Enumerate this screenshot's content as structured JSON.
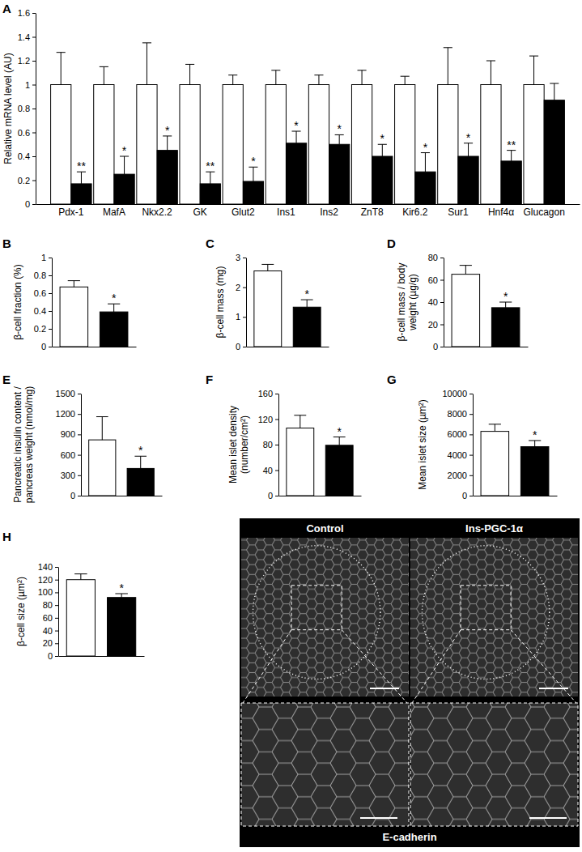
{
  "chart_data": [
    {
      "type": "bar",
      "title": "A",
      "ylabel": "Relative mRNA level (AU)",
      "categories": [
        "Pdx-1",
        "MafA",
        "Nkx2.2",
        "GK",
        "Glut2",
        "Ins1",
        "Ins2",
        "ZnT8",
        "Kir6.2",
        "Sur1",
        "Hnf4α",
        "Glucagon"
      ],
      "ylim": [
        0,
        1.6
      ],
      "yticks": [
        0,
        0.2,
        0.4,
        0.6,
        0.8,
        1,
        1.2,
        1.4,
        1.6
      ],
      "series": [
        {
          "color": "#ffffff",
          "values": [
            1,
            1,
            1,
            1,
            1,
            1,
            1,
            1,
            1,
            1,
            1,
            1
          ],
          "errors": [
            0.27,
            0.15,
            0.35,
            0.17,
            0.08,
            0.12,
            0.08,
            0.12,
            0.07,
            0.31,
            0.2,
            0.24
          ]
        },
        {
          "color": "#000000",
          "values": [
            0.17,
            0.25,
            0.45,
            0.17,
            0.19,
            0.51,
            0.5,
            0.4,
            0.27,
            0.4,
            0.36,
            0.87
          ],
          "errors": [
            0.1,
            0.15,
            0.12,
            0.1,
            0.12,
            0.1,
            0.08,
            0.1,
            0.16,
            0.11,
            0.09,
            0.14
          ],
          "annotations": [
            "**",
            "*",
            "*",
            "**",
            "*",
            "*",
            "*",
            "*",
            "*",
            "*",
            "**",
            null
          ]
        }
      ]
    },
    {
      "type": "bar",
      "title": "B",
      "ylabel": "β-cell fraction (%)",
      "categories": [
        null
      ],
      "ylim": [
        0,
        1
      ],
      "yticks": [
        0,
        0.2,
        0.4,
        0.6,
        0.8,
        1
      ],
      "series": [
        {
          "color": "#ffffff",
          "values": [
            0.67
          ],
          "errors": [
            0.07
          ]
        },
        {
          "color": "#000000",
          "values": [
            0.39
          ],
          "errors": [
            0.09
          ],
          "annotations": [
            "*"
          ]
        }
      ]
    },
    {
      "type": "bar",
      "title": "C",
      "ylabel": "β-cell mass (mg)",
      "categories": [
        null
      ],
      "ylim": [
        0,
        3
      ],
      "yticks": [
        0,
        1,
        2,
        3
      ],
      "series": [
        {
          "color": "#ffffff",
          "values": [
            2.55
          ],
          "errors": [
            0.22
          ]
        },
        {
          "color": "#000000",
          "values": [
            1.33
          ],
          "errors": [
            0.25
          ],
          "annotations": [
            "*"
          ]
        }
      ]
    },
    {
      "type": "bar",
      "title": "D",
      "ylabel": [
        "β-cell mass / body",
        "weight (µg/g)"
      ],
      "categories": [
        null
      ],
      "ylim": [
        0,
        80
      ],
      "yticks": [
        0,
        20,
        40,
        60,
        80
      ],
      "series": [
        {
          "color": "#ffffff",
          "values": [
            65
          ],
          "errors": [
            8
          ]
        },
        {
          "color": "#000000",
          "values": [
            35
          ],
          "errors": [
            5
          ],
          "annotations": [
            "*"
          ]
        }
      ]
    },
    {
      "type": "bar",
      "title": "E",
      "ylabel": [
        "Pancreatic insulin content /",
        "pancreas weight (nmol/mg)"
      ],
      "categories": [
        null
      ],
      "ylim": [
        0,
        1500
      ],
      "yticks": [
        0,
        300,
        600,
        900,
        1200,
        1500
      ],
      "series": [
        {
          "color": "#ffffff",
          "values": [
            820
          ],
          "errors": [
            340
          ]
        },
        {
          "color": "#000000",
          "values": [
            400
          ],
          "errors": [
            180
          ],
          "annotations": [
            "*"
          ]
        }
      ]
    },
    {
      "type": "bar",
      "title": "F",
      "ylabel": [
        "Mean islet density",
        "(number/cm²)"
      ],
      "categories": [
        null
      ],
      "ylim": [
        0,
        160
      ],
      "yticks": [
        0,
        40,
        80,
        120,
        160
      ],
      "series": [
        {
          "color": "#ffffff",
          "values": [
            106
          ],
          "errors": [
            20
          ]
        },
        {
          "color": "#000000",
          "values": [
            79
          ],
          "errors": [
            13
          ],
          "annotations": [
            "*"
          ]
        }
      ]
    },
    {
      "type": "bar",
      "title": "G",
      "ylabel": "Mean islet size (µm²)",
      "categories": [
        null
      ],
      "ylim": [
        0,
        10000
      ],
      "yticks": [
        0,
        2000,
        4000,
        6000,
        8000,
        10000
      ],
      "series": [
        {
          "color": "#ffffff",
          "values": [
            6300
          ],
          "errors": [
            700
          ]
        },
        {
          "color": "#000000",
          "values": [
            4800
          ],
          "errors": [
            600
          ],
          "annotations": [
            "*"
          ]
        }
      ]
    },
    {
      "type": "bar",
      "title": "H",
      "ylabel": "β-cell size (µm²)",
      "categories": [
        null
      ],
      "ylim": [
        0,
        140
      ],
      "yticks": [
        0,
        20,
        40,
        60,
        80,
        100,
        120,
        140
      ],
      "series": [
        {
          "color": "#ffffff",
          "values": [
            120
          ],
          "errors": [
            9
          ]
        },
        {
          "color": "#000000",
          "values": [
            92
          ],
          "errors": [
            6
          ],
          "annotations": [
            "*"
          ]
        }
      ]
    }
  ],
  "image_panel": {
    "labels": [
      "Control",
      "Ins-PGC-1α"
    ],
    "stain": "E-cadherin"
  }
}
